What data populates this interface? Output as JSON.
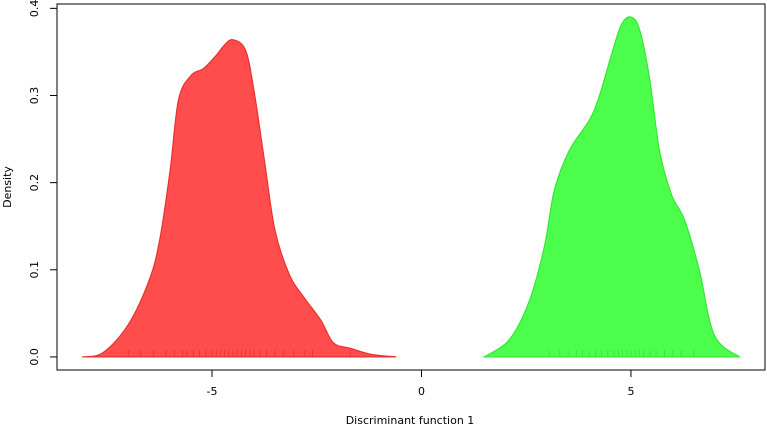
{
  "chart_data": {
    "type": "density",
    "x_label": "Discriminant function 1",
    "y_label": "Density",
    "xlim": [
      -8.7,
      8.2
    ],
    "ylim": [
      -0.015,
      0.405
    ],
    "xticks": [
      -5,
      0,
      5
    ],
    "yticks": [
      {
        "value": 0,
        "label": "0.0"
      },
      0.1,
      0.2,
      0.3,
      0.4
    ],
    "series": [
      {
        "color": "#ff4d4d",
        "stroke": "#e83030",
        "x": [
          -8.1,
          -7.6,
          -7,
          -6.5,
          -6.25,
          -6,
          -5.8,
          -5.5,
          -5.2,
          -4.9,
          -4.7,
          -4.5,
          -4.2,
          -4,
          -3.75,
          -3.5,
          -3.15,
          -2.8,
          -2.4,
          -2.1,
          -1.7,
          -1.2,
          -0.6
        ],
        "values": [
          0,
          0.005,
          0.037,
          0.088,
          0.134,
          0.214,
          0.295,
          0.323,
          0.331,
          0.346,
          0.358,
          0.364,
          0.352,
          0.306,
          0.226,
          0.146,
          0.094,
          0.068,
          0.042,
          0.016,
          0.01,
          0.003,
          0
        ],
        "rug": [
          -7.0,
          -6.7,
          -6.4,
          -6.1,
          -5.9,
          -5.7,
          -5.6,
          -5.45,
          -5.3,
          -5.15,
          -5.0,
          -4.9,
          -4.8,
          -4.7,
          -4.6,
          -4.5,
          -4.4,
          -4.3,
          -4.2,
          -4.1,
          -4.0,
          -3.85,
          -3.7,
          -3.5,
          -3.3,
          -3.05,
          -2.8,
          -2.6,
          -1.7
        ]
      },
      {
        "color": "#4dff4d",
        "stroke": "#33e633",
        "x": [
          1.5,
          2.1,
          2.58,
          2.94,
          3.17,
          3.53,
          4.01,
          4.25,
          4.53,
          4.77,
          5.0,
          5.21,
          5.45,
          5.68,
          5.97,
          6.28,
          6.63,
          6.99,
          7.59
        ],
        "values": [
          0,
          0.02,
          0.065,
          0.128,
          0.191,
          0.237,
          0.272,
          0.3,
          0.346,
          0.381,
          0.39,
          0.375,
          0.318,
          0.237,
          0.186,
          0.157,
          0.1,
          0.025,
          0
        ],
        "rug": [
          3.05,
          3.3,
          3.5,
          3.7,
          3.85,
          4.0,
          4.15,
          4.3,
          4.45,
          4.6,
          4.7,
          4.8,
          4.9,
          5.0,
          5.1,
          5.2,
          5.3,
          5.45,
          5.6,
          5.8,
          6.0,
          6.2,
          6.5
        ]
      }
    ]
  }
}
